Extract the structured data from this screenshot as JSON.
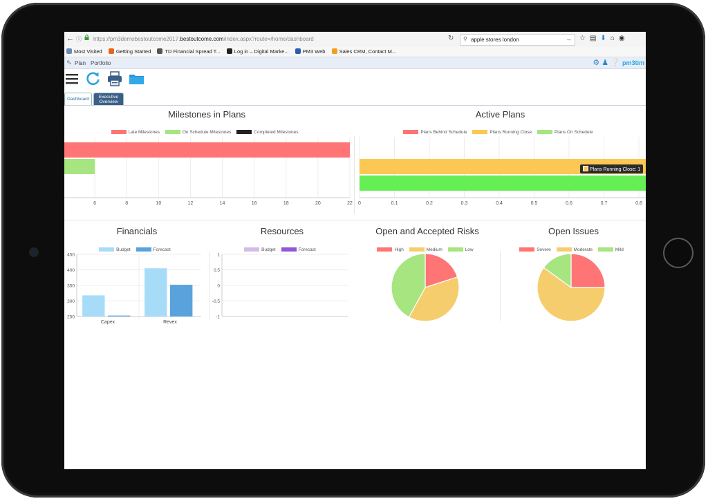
{
  "browser": {
    "url_prefix": "https://pm3demobestoutcome2017.",
    "url_domain": "bestoutcome.com",
    "url_path": "/index.aspx?route=/home/dashboard",
    "search_query": "apple stores london",
    "bookmarks": [
      {
        "label": "Most Visited",
        "color": "#6a8ab8"
      },
      {
        "label": "Getting Started",
        "color": "#e8641b"
      },
      {
        "label": "TD Financial Spread T...",
        "color": "#555555"
      },
      {
        "label": "Log in – Digital Marke...",
        "color": "#222222"
      },
      {
        "label": "PM3 Web",
        "color": "#2a5db0"
      },
      {
        "label": "Sales CRM, Contact M...",
        "color": "#f0a020"
      }
    ]
  },
  "app": {
    "menu": [
      "Plan",
      "Portfolio"
    ],
    "logo": "pm3tim",
    "tabs": {
      "dashboard": "Dashboard",
      "exec_line1": "Executive",
      "exec_line2": "Overview"
    }
  },
  "panels": {
    "milestones": {
      "title": "Milestones in Plans",
      "legend": [
        {
          "label": "Late Milestones",
          "color": "#ff7575"
        },
        {
          "label": "On Schedule Milestones",
          "color": "#a6e57f"
        },
        {
          "label": "Completed Milestones",
          "color": "#222222"
        }
      ]
    },
    "active": {
      "title": "Active Plans",
      "legend": [
        {
          "label": "Plans Behind Schedule",
          "color": "#ff7575"
        },
        {
          "label": "Plans Running Close",
          "color": "#fcc853"
        },
        {
          "label": "Plans On Schedule",
          "color": "#a6e57f"
        }
      ],
      "tooltip": "Plans Running Close: 1"
    },
    "financials": {
      "title": "Financials",
      "legend": [
        {
          "label": "Budget",
          "color": "#a6dcf7"
        },
        {
          "label": "Forecast",
          "color": "#5aa2dc"
        }
      ]
    },
    "resources": {
      "title": "Resources",
      "legend": [
        {
          "label": "Budget",
          "color": "#d4bce8"
        },
        {
          "label": "Forecast",
          "color": "#9057d6"
        }
      ]
    },
    "risks": {
      "title": "Open and Accepted Risks",
      "legend": [
        {
          "label": "High",
          "color": "#ff7575"
        },
        {
          "label": "Medium",
          "color": "#f6cd6c"
        },
        {
          "label": "Low",
          "color": "#a6e57f"
        }
      ]
    },
    "issues": {
      "title": "Open Issues",
      "legend": [
        {
          "label": "Severe",
          "color": "#ff7575"
        },
        {
          "label": "Moderate",
          "color": "#f6cd6c"
        },
        {
          "label": "Mild",
          "color": "#a6e57f"
        }
      ]
    }
  },
  "chart_data": [
    {
      "type": "bar",
      "orientation": "horizontal",
      "title": "Milestones in Plans",
      "xlim": [
        4,
        22
      ],
      "xticks": [
        "6",
        "8",
        "10",
        "12",
        "14",
        "16",
        "18",
        "20",
        "22"
      ],
      "bars": [
        {
          "series": "Late Milestones",
          "value": 22,
          "color": "#ff7575"
        },
        {
          "series": "On Schedule Milestones",
          "value": 6,
          "color": "#a6e57f"
        }
      ]
    },
    {
      "type": "bar",
      "orientation": "horizontal",
      "title": "Active Plans",
      "xlim": [
        0,
        1
      ],
      "xticks": [
        "0",
        "0.1",
        "0.2",
        "0.3",
        "0.4",
        "0.5",
        "0.6",
        "0.7",
        "0.8",
        "0.9",
        "1"
      ],
      "bars": [
        {
          "series": "Plans Running Close",
          "value": 1,
          "color": "#fcc853"
        },
        {
          "series": "Plans On Schedule",
          "value": 1,
          "color": "#66ee55"
        }
      ]
    },
    {
      "type": "bar",
      "title": "Financials",
      "categories": [
        "Capex",
        "Revex"
      ],
      "yticks": [
        "450",
        "400",
        "350",
        "300",
        "250"
      ],
      "ylim": [
        250,
        450
      ],
      "series": [
        {
          "name": "Budget",
          "values": [
            318,
            405
          ],
          "color": "#a6dcf7"
        },
        {
          "name": "Forecast",
          "values": [
            253,
            352
          ],
          "color": "#5aa2dc"
        }
      ]
    },
    {
      "type": "bar",
      "title": "Resources",
      "categories": [],
      "yticks": [
        "1",
        "0.5",
        "0",
        "-0.5",
        "-1"
      ],
      "ylim": [
        -1,
        1
      ],
      "series": [
        {
          "name": "Budget",
          "values": []
        },
        {
          "name": "Forecast",
          "values": []
        }
      ]
    },
    {
      "type": "pie",
      "title": "Open and Accepted Risks",
      "labels": [
        "High",
        "Medium",
        "Low"
      ],
      "values": [
        20,
        38,
        42
      ],
      "colors": [
        "#ff7575",
        "#f6cd6c",
        "#a6e57f"
      ]
    },
    {
      "type": "pie",
      "title": "Open Issues",
      "labels": [
        "Severe",
        "Moderate",
        "Mild"
      ],
      "values": [
        25,
        60,
        15
      ],
      "colors": [
        "#ff7575",
        "#f6cd6c",
        "#a6e57f"
      ]
    }
  ]
}
